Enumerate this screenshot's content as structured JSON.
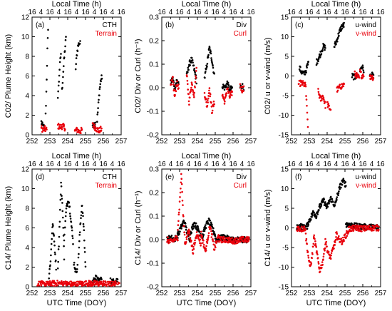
{
  "colors": {
    "black_series": "#000000",
    "red_series": "#e8000b"
  },
  "chart_data": [
    {
      "type": "scatter",
      "panel_label": "(a)",
      "title": "",
      "top_axis_label": "Local Time (h)",
      "top_ticks": [
        "16",
        "4",
        "16",
        "4",
        "16",
        "4",
        "16",
        "4",
        "16",
        "4",
        "16"
      ],
      "xlabel": "",
      "ylabel": "C02/ Plume Height (km)",
      "xlim": [
        252,
        257
      ],
      "ylim": [
        0,
        12
      ],
      "x_ticks": [
        "252",
        "253",
        "254",
        "255",
        "256",
        "257"
      ],
      "y_ticks": [
        "0",
        "2",
        "4",
        "6",
        "8",
        "10",
        "12"
      ],
      "legend": "top-right",
      "series": [
        {
          "name": "CTH",
          "color": "#000000",
          "segments": [
            {
              "x0": 252.52,
              "x1": 252.72,
              "y": [
                1.3,
                0.9,
                0.8,
                0.7
              ]
            },
            {
              "x0": 252.76,
              "x1": 252.9,
              "y": [
                2.0,
                4.0,
                6.5,
                9.0,
                10.5
              ]
            },
            {
              "x0": 253.45,
              "x1": 253.62,
              "y": [
                4.0,
                5.0,
                6.5,
                7.5,
                8.3
              ]
            },
            {
              "x0": 253.68,
              "x1": 253.9,
              "y": [
                4.5,
                6.0,
                7.5,
                8.7,
                9.8
              ]
            },
            {
              "x0": 254.45,
              "x1": 254.7,
              "y": [
                6.8,
                8.2,
                9.0,
                9.4,
                9.3
              ]
            },
            {
              "x0": 255.4,
              "x1": 255.55,
              "y": [
                1.0,
                1.2,
                1.0,
                1.3
              ]
            },
            {
              "x0": 255.65,
              "x1": 255.92,
              "y": [
                1.5,
                3.0,
                4.5,
                5.5,
                5.9
              ]
            }
          ]
        },
        {
          "name": "Terrain",
          "color": "#e8000b",
          "segments": [
            {
              "x0": 252.52,
              "x1": 252.82,
              "y": [
                0.7,
                0.5,
                0.6,
                0.5
              ]
            },
            {
              "x0": 253.45,
              "x1": 253.85,
              "y": [
                0.9,
                0.8,
                0.9,
                0.7
              ]
            },
            {
              "x0": 254.4,
              "x1": 254.8,
              "y": [
                0.4,
                0.5,
                0.3,
                0.5
              ]
            },
            {
              "x0": 255.4,
              "x1": 255.9,
              "y": [
                1.0,
                0.7,
                0.4,
                0.6
              ]
            }
          ]
        }
      ]
    },
    {
      "type": "scatter",
      "panel_label": "(b)",
      "title": "",
      "top_axis_label": "Local Time (h)",
      "top_ticks": [
        "16",
        "4",
        "16",
        "4",
        "16",
        "4",
        "16",
        "4",
        "16",
        "4",
        "16"
      ],
      "xlabel": "",
      "ylabel": "C02/ Div or Curl (h⁻¹)",
      "xlim": [
        252,
        257
      ],
      "ylim": [
        -0.2,
        0.3
      ],
      "x_ticks": [
        "252",
        "253",
        "254",
        "255",
        "256",
        "257"
      ],
      "y_ticks": [
        "-0.2",
        "-0.1",
        "0.0",
        "0.1",
        "0.2",
        "0.3"
      ],
      "legend": "top-right",
      "series": [
        {
          "name": "Div",
          "color": "#000000",
          "segments": [
            {
              "x0": 252.5,
              "x1": 252.95,
              "y": [
                0.02,
                0.04,
                0.0,
                0.03,
                0.02
              ]
            },
            {
              "x0": 253.4,
              "x1": 253.95,
              "y": [
                0.05,
                0.1,
                0.12,
                0.08,
                0.03
              ]
            },
            {
              "x0": 254.4,
              "x1": 254.95,
              "y": [
                0.04,
                0.1,
                0.17,
                0.12,
                0.05
              ]
            },
            {
              "x0": 255.4,
              "x1": 255.95,
              "y": [
                0.01,
                0.0,
                0.02,
                -0.01,
                0.0
              ]
            },
            {
              "x0": 256.4,
              "x1": 256.6,
              "y": [
                0.0,
                0.01,
                0.0
              ]
            }
          ]
        },
        {
          "name": "Curl",
          "color": "#e8000b",
          "segments": [
            {
              "x0": 252.5,
              "x1": 252.95,
              "y": [
                0.0,
                0.04,
                -0.04,
                0.02,
                0.0
              ]
            },
            {
              "x0": 253.4,
              "x1": 253.95,
              "y": [
                0.05,
                -0.06,
                0.02,
                -0.03,
                0.08
              ]
            },
            {
              "x0": 254.4,
              "x1": 254.95,
              "y": [
                -0.02,
                -0.08,
                0.0,
                -0.1,
                -0.06
              ]
            },
            {
              "x0": 255.4,
              "x1": 255.95,
              "y": [
                -0.03,
                -0.06,
                0.0,
                -0.04,
                -0.02
              ]
            },
            {
              "x0": 256.4,
              "x1": 256.6,
              "y": [
                0.01,
                -0.01,
                0.0
              ]
            }
          ]
        }
      ]
    },
    {
      "type": "scatter",
      "panel_label": "(c)",
      "title": "",
      "top_axis_label": "Local Time (h)",
      "top_ticks": [
        "16",
        "4",
        "16",
        "4",
        "16",
        "4",
        "16",
        "4",
        "16",
        "4",
        "16"
      ],
      "xlabel": "",
      "ylabel": "C02/ u or v-wind (m/s)",
      "xlim": [
        252,
        257
      ],
      "ylim": [
        -15,
        15
      ],
      "x_ticks": [
        "252",
        "253",
        "254",
        "255",
        "256",
        "257"
      ],
      "y_ticks": [
        "-15",
        "-10",
        "-5",
        "0",
        "5",
        "10",
        "15"
      ],
      "legend": "top-right",
      "series": [
        {
          "name": "u-wind",
          "color": "#000000",
          "segments": [
            {
              "x0": 252.45,
              "x1": 252.95,
              "y": [
                2.0,
                1.0,
                0.5,
                1.5,
                3.5
              ]
            },
            {
              "x0": 253.4,
              "x1": 253.9,
              "y": [
                3.5,
                4.5,
                6.0,
                7.5,
                7.2
              ]
            },
            {
              "x0": 254.4,
              "x1": 254.95,
              "y": [
                7.5,
                9.0,
                11.0,
                12.5,
                13.0
              ]
            },
            {
              "x0": 255.4,
              "x1": 255.7,
              "y": [
                0.0,
                -0.3,
                0.2
              ]
            },
            {
              "x0": 255.85,
              "x1": 256.05,
              "y": [
                1.5,
                2.5,
                1.5
              ]
            },
            {
              "x0": 256.4,
              "x1": 256.6,
              "y": [
                -0.2,
                0.2,
                0.0
              ]
            }
          ]
        },
        {
          "name": "v-wind",
          "color": "#e8000b",
          "segments": [
            {
              "x0": 252.4,
              "x1": 252.8,
              "y": [
                -2.0,
                -1.8,
                -2.0,
                -2.5
              ]
            },
            {
              "x0": 252.82,
              "x1": 252.92,
              "y": [
                -5.0,
                -9.0,
                -12.5
              ]
            },
            {
              "x0": 253.5,
              "x1": 253.9,
              "y": [
                -4.0,
                -6.0,
                -5.0,
                -7.5
              ]
            },
            {
              "x0": 254.0,
              "x1": 254.2,
              "y": [
                -7.0,
                -8.0,
                -8.5
              ]
            },
            {
              "x0": 254.55,
              "x1": 254.95,
              "y": [
                -3.5,
                -3.0,
                -2.5,
                -2.2
              ]
            },
            {
              "x0": 255.55,
              "x1": 255.8,
              "y": [
                0.5,
                0.0,
                -0.5
              ]
            },
            {
              "x0": 255.85,
              "x1": 256.05,
              "y": [
                1.0,
                0.0,
                0.5
              ]
            },
            {
              "x0": 256.4,
              "x1": 256.6,
              "y": [
                -0.5,
                0.0,
                -0.5
              ]
            }
          ]
        }
      ]
    },
    {
      "type": "scatter",
      "panel_label": "(d)",
      "title": "",
      "top_axis_label": "Local Time (h)",
      "top_ticks": [
        "16",
        "4",
        "16",
        "4",
        "16",
        "4",
        "16",
        "4",
        "16",
        "4",
        "16"
      ],
      "xlabel": "UTC Time (DOY)",
      "ylabel": "C14/ Plume Height (km)",
      "xlim": [
        252,
        257
      ],
      "ylim": [
        0,
        12
      ],
      "x_ticks": [
        "252",
        "253",
        "254",
        "255",
        "256",
        "257"
      ],
      "y_ticks": [
        "0",
        "2",
        "4",
        "6",
        "8",
        "10",
        "12"
      ],
      "legend": "top-right",
      "series": [
        {
          "name": "CTH",
          "color": "#000000",
          "segments": [
            {
              "x0": 252.95,
              "x1": 253.35,
              "y": [
                1.0,
                3.0,
                6.5,
                4.5,
                2.0
              ]
            },
            {
              "x0": 253.45,
              "x1": 253.8,
              "y": [
                2.0,
                6.0,
                10.5,
                8.0,
                3.0
              ]
            },
            {
              "x0": 253.8,
              "x1": 254.3,
              "y": [
                5.0,
                8.0,
                9.0,
                7.0,
                4.5
              ]
            },
            {
              "x0": 254.35,
              "x1": 254.55,
              "y": [
                2.5,
                1.5,
                2.0
              ]
            },
            {
              "x0": 254.6,
              "x1": 255.0,
              "y": [
                3.0,
                6.0,
                8.5,
                6.0,
                2.0
              ]
            },
            {
              "x0": 255.4,
              "x1": 255.9,
              "y": [
                0.5,
                0.9,
                0.6,
                0.8
              ]
            },
            {
              "x0": 256.4,
              "x1": 256.8,
              "y": [
                0.6,
                0.5,
                0.7
              ]
            }
          ]
        },
        {
          "name": "Terrain",
          "color": "#e8000b",
          "segments": [
            {
              "x0": 252.3,
              "x1": 256.9,
              "y": [
                0.3,
                0.25,
                0.35,
                0.3,
                0.25,
                0.3,
                0.35,
                0.3,
                0.25,
                0.3
              ]
            }
          ]
        }
      ]
    },
    {
      "type": "scatter",
      "panel_label": "(e)",
      "title": "",
      "top_axis_label": "Local Time (h)",
      "top_ticks": [
        "16",
        "4",
        "16",
        "4",
        "16",
        "4",
        "16",
        "4",
        "16",
        "4",
        "16"
      ],
      "xlabel": "UTC Time (DOY)",
      "ylabel": "C14/ Div or Curl (h⁻¹)",
      "xlim": [
        252,
        257
      ],
      "ylim": [
        -0.2,
        0.3
      ],
      "x_ticks": [
        "252",
        "253",
        "254",
        "255",
        "256",
        "257"
      ],
      "y_ticks": [
        "-0.2",
        "-0.1",
        "0.0",
        "0.1",
        "0.2",
        "0.3"
      ],
      "legend": "top-right",
      "series": [
        {
          "name": "Div",
          "color": "#000000",
          "segments": [
            {
              "x0": 252.3,
              "x1": 252.9,
              "y": [
                0.0,
                0.01,
                0.0,
                0.02
              ]
            },
            {
              "x0": 252.9,
              "x1": 253.6,
              "y": [
                0.02,
                0.05,
                0.08,
                0.03,
                0.0
              ]
            },
            {
              "x0": 253.6,
              "x1": 254.3,
              "y": [
                0.03,
                0.07,
                0.04,
                0.01
              ]
            },
            {
              "x0": 254.3,
              "x1": 255.0,
              "y": [
                0.02,
                0.06,
                0.08,
                0.05,
                0.02
              ]
            },
            {
              "x0": 255.0,
              "x1": 256.9,
              "y": [
                0.0,
                0.01,
                0.0,
                0.0,
                0.0
              ]
            }
          ]
        },
        {
          "name": "Curl",
          "color": "#e8000b",
          "segments": [
            {
              "x0": 252.3,
              "x1": 252.9,
              "y": [
                0.0,
                -0.01,
                0.0,
                0.01
              ]
            },
            {
              "x0": 252.9,
              "x1": 253.3,
              "y": [
                0.05,
                0.15,
                0.28,
                0.1,
                0.0
              ]
            },
            {
              "x0": 253.3,
              "x1": 254.2,
              "y": [
                -0.02,
                0.04,
                -0.05,
                0.03,
                -0.02
              ]
            },
            {
              "x0": 254.2,
              "x1": 255.2,
              "y": [
                0.03,
                -0.05,
                0.06,
                -0.04,
                0.02
              ]
            },
            {
              "x0": 255.2,
              "x1": 256.9,
              "y": [
                0.0,
                0.0,
                -0.005,
                0.0,
                0.0
              ]
            }
          ]
        }
      ]
    },
    {
      "type": "scatter",
      "panel_label": "(f)",
      "title": "",
      "top_axis_label": "Local Time (h)",
      "top_ticks": [
        "16",
        "4",
        "16",
        "4",
        "16",
        "4",
        "16",
        "4",
        "16",
        "4",
        "16"
      ],
      "xlabel": "UTC Time (DOY)",
      "ylabel": "C14/ u or v-wind (m/s)",
      "xlim": [
        252,
        257
      ],
      "ylim": [
        -15,
        15
      ],
      "x_ticks": [
        "252",
        "253",
        "254",
        "255",
        "256",
        "257"
      ],
      "y_ticks": [
        "-15",
        "-10",
        "-5",
        "0",
        "5",
        "10",
        "15"
      ],
      "legend": "top-right",
      "series": [
        {
          "name": "u-wind",
          "color": "#000000",
          "segments": [
            {
              "x0": 252.3,
              "x1": 252.9,
              "y": [
                0.0,
                0.5,
                0.0,
                0.5
              ]
            },
            {
              "x0": 252.9,
              "x1": 253.4,
              "y": [
                1.0,
                2.5,
                4.0,
                3.0
              ]
            },
            {
              "x0": 253.4,
              "x1": 254.0,
              "y": [
                3.5,
                5.5,
                7.0,
                5.0
              ]
            },
            {
              "x0": 254.0,
              "x1": 254.4,
              "y": [
                5.5,
                7.5,
                6.0
              ]
            },
            {
              "x0": 254.4,
              "x1": 255.05,
              "y": [
                5.0,
                8.0,
                10.5,
                12.0,
                11.0
              ]
            },
            {
              "x0": 255.05,
              "x1": 256.9,
              "y": [
                1.0,
                0.5,
                0.3,
                0.2,
                0.2
              ]
            }
          ]
        },
        {
          "name": "v-wind",
          "color": "#e8000b",
          "segments": [
            {
              "x0": 252.3,
              "x1": 252.8,
              "y": [
                0.0,
                -0.3,
                0.0
              ]
            },
            {
              "x0": 252.8,
              "x1": 253.25,
              "y": [
                -2.0,
                -6.0,
                -10.0,
                -8.0,
                -3.0
              ]
            },
            {
              "x0": 253.25,
              "x1": 253.9,
              "y": [
                -2.0,
                -6.0,
                -11.0,
                -9.0,
                -4.0
              ]
            },
            {
              "x0": 253.9,
              "x1": 254.5,
              "y": [
                -3.0,
                -6.5,
                -7.5,
                -5.0,
                -3.0
              ]
            },
            {
              "x0": 254.5,
              "x1": 255.2,
              "y": [
                -1.5,
                -3.0,
                -3.5,
                -2.0,
                -0.8
              ]
            },
            {
              "x0": 255.2,
              "x1": 256.9,
              "y": [
                -0.3,
                0.0,
                -0.2,
                0.0,
                0.0
              ]
            }
          ]
        }
      ]
    }
  ]
}
